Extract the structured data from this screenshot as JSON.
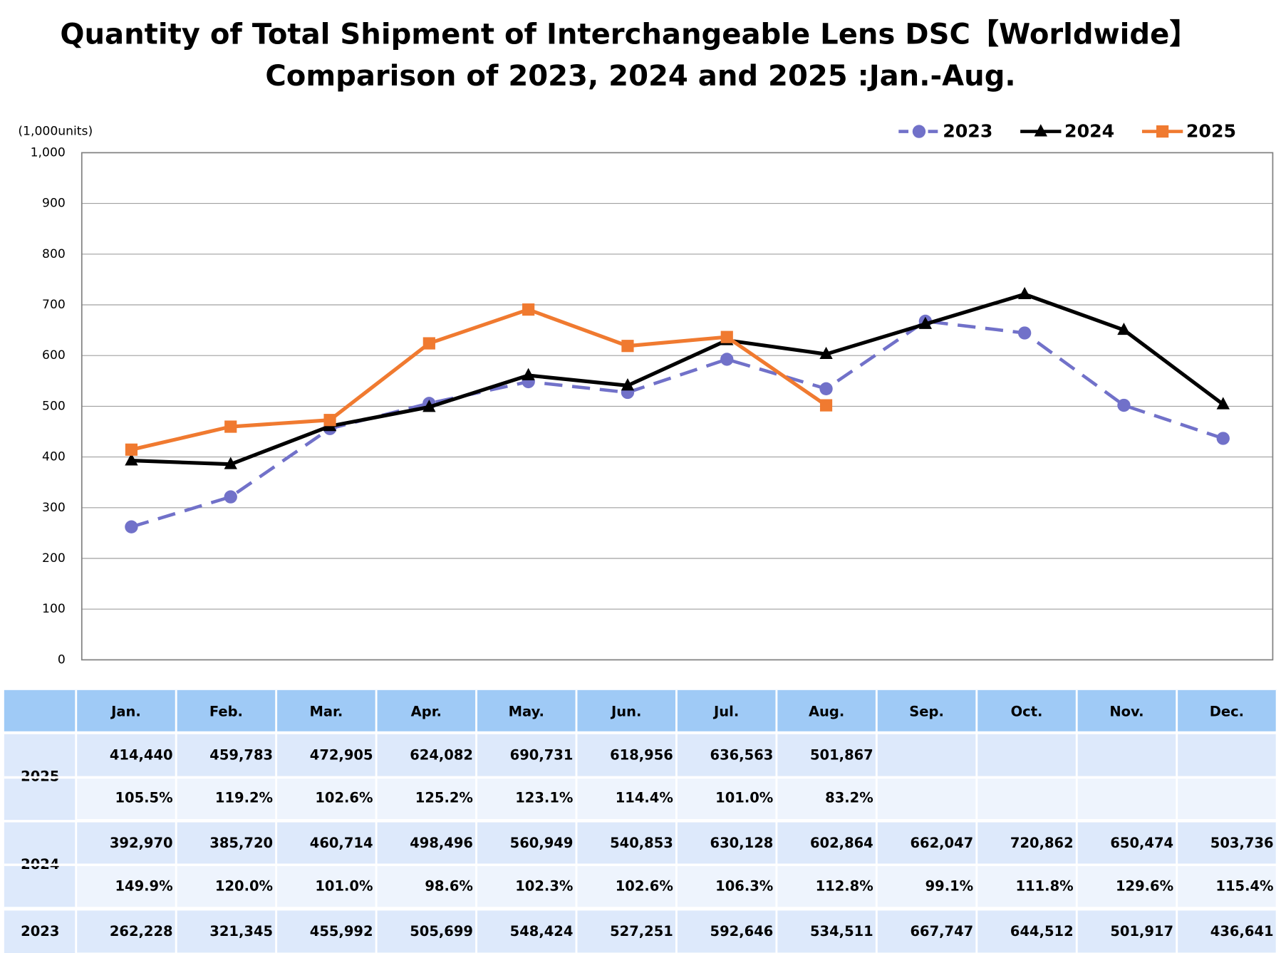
{
  "chart_data": {
    "type": "line",
    "title": "Quantity of Total Shipment of Interchangeable Lens DSC【Worldwide】",
    "subtitle": "Comparison of 2023, 2024 and 2025 :Jan.-Aug.",
    "y_label": "(1,000units)",
    "categories": [
      "Jan.",
      "Feb.",
      "Mar.",
      "Apr.",
      "May.",
      "Jun.",
      "Jul.",
      "Aug.",
      "Sep.",
      "Oct.",
      "Nov.",
      "Dec."
    ],
    "series": [
      {
        "name": "2023",
        "color": "#7171c9",
        "dashed": true,
        "marker": "circle",
        "values": [
          262.228,
          321.345,
          455.992,
          505.699,
          548.424,
          527.251,
          592.646,
          534.511,
          667.747,
          644.512,
          501.917,
          436.641
        ]
      },
      {
        "name": "2024",
        "color": "#000000",
        "marker": "triangle",
        "values": [
          392.97,
          385.72,
          460.714,
          498.496,
          560.949,
          540.853,
          630.128,
          602.864,
          662.047,
          720.862,
          650.474,
          503.736
        ]
      },
      {
        "name": "2025",
        "color": "#f07a30",
        "marker": "square",
        "values": [
          414.44,
          459.783,
          472.905,
          624.082,
          690.731,
          618.956,
          636.563,
          501.867,
          null,
          null,
          null,
          null
        ]
      }
    ],
    "ylim": [
      0,
      1000
    ],
    "yticks": [
      0,
      100,
      200,
      300,
      400,
      500,
      600,
      700,
      800,
      900,
      {
        "value": 1000,
        "label": "1,000"
      }
    ],
    "grid": true,
    "legend": "top-right"
  },
  "table": {
    "rows": [
      {
        "label": "2025",
        "lines": [
          [
            "414,440",
            "459,783",
            "472,905",
            "624,082",
            "690,731",
            "618,956",
            "636,563",
            "501,867",
            "",
            "",
            "",
            ""
          ],
          [
            "105.5%",
            "119.2%",
            "102.6%",
            "125.2%",
            "123.1%",
            "114.4%",
            "101.0%",
            "83.2%",
            "",
            "",
            "",
            ""
          ]
        ]
      },
      {
        "label": "2024",
        "lines": [
          [
            "392,970",
            "385,720",
            "460,714",
            "498,496",
            "560,949",
            "540,853",
            "630,128",
            "602,864",
            "662,047",
            "720,862",
            "650,474",
            "503,736"
          ],
          [
            "149.9%",
            "120.0%",
            "101.0%",
            "98.6%",
            "102.3%",
            "102.6%",
            "106.3%",
            "112.8%",
            "99.1%",
            "111.8%",
            "129.6%",
            "115.4%"
          ]
        ]
      },
      {
        "label": "2023",
        "lines": [
          [
            "262,228",
            "321,345",
            "455,992",
            "505,699",
            "548,424",
            "527,251",
            "592,646",
            "534,511",
            "667,747",
            "644,512",
            "501,917",
            "436,641"
          ]
        ]
      }
    ]
  }
}
